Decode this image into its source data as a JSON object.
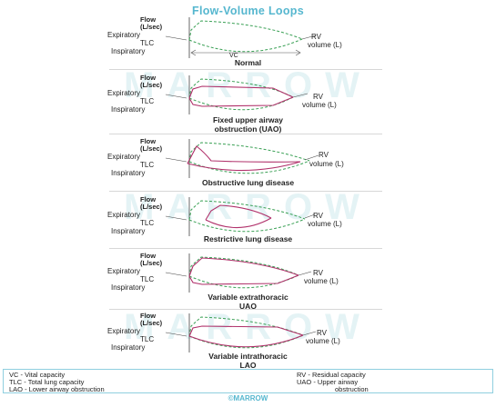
{
  "title": "Flow-Volume Loops",
  "watermark": "MARROW",
  "axis": {
    "flow_line1": "Flow",
    "flow_line2": "(L/sec)",
    "expiratory": "Expiratory",
    "tlc": "TLC",
    "inspiratory": "Inspiratory",
    "rv": "RV",
    "volume": "volume (L)",
    "vc": "VC"
  },
  "panels": [
    {
      "caption": "Normal",
      "caption2": ""
    },
    {
      "caption": "Fixed upper airway",
      "caption2": "obstruction (UAO)"
    },
    {
      "caption": "Obstructive lung disease",
      "caption2": ""
    },
    {
      "caption": "Restrictive lung disease",
      "caption2": ""
    },
    {
      "caption": "Variable extrathoracic",
      "caption2": "UAO"
    },
    {
      "caption": "Variable intrathoracic",
      "caption2": "LAO"
    }
  ],
  "legend": {
    "left": [
      "VC - Vital capacity",
      "TLC - Total lung capacity",
      "LAO - Lower airway obstruction"
    ],
    "right": [
      "RV - Residual capacity",
      "UAO - Upper airway",
      "obstruction"
    ]
  },
  "footer": "©MARROW",
  "colors": {
    "normal": "#3aa055",
    "abnormal": "#b0306a",
    "accent": "#56b7cf"
  }
}
